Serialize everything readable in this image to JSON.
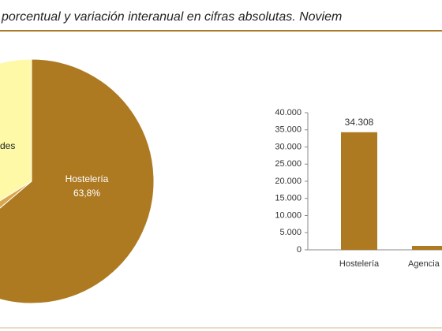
{
  "title": "porcentual y variación interanual en cifras absolutas. Noviem",
  "chart_data": [
    {
      "type": "pie",
      "categories": [
        "Hostelería",
        null,
        "des"
      ],
      "values": [
        63.8,
        2.4,
        33.8
      ],
      "value_labels": [
        "63,8%",
        null,
        null
      ],
      "colors": [
        "#ad7a22",
        "#d8a64c",
        "#fdf9a6"
      ]
    },
    {
      "type": "bar",
      "categories": [
        "Hostelería",
        "Agencia"
      ],
      "values": [
        34308,
        1150
      ],
      "value_labels": [
        "34.308",
        null
      ],
      "color": "#ad7a22",
      "ylim": [
        0,
        40000
      ],
      "yticks": [
        0,
        {
          "value": 5000,
          "label": "5.000"
        },
        {
          "value": 10000,
          "label": "10.000"
        },
        {
          "value": 15000,
          "label": "15.000"
        },
        {
          "value": 20000,
          "label": "20.000"
        },
        {
          "value": 25000,
          "label": "25.000"
        },
        {
          "value": 30000,
          "label": "30.000"
        },
        {
          "value": 35000,
          "label": "35.000"
        },
        {
          "value": 40000,
          "label": "40.000"
        }
      ]
    }
  ]
}
